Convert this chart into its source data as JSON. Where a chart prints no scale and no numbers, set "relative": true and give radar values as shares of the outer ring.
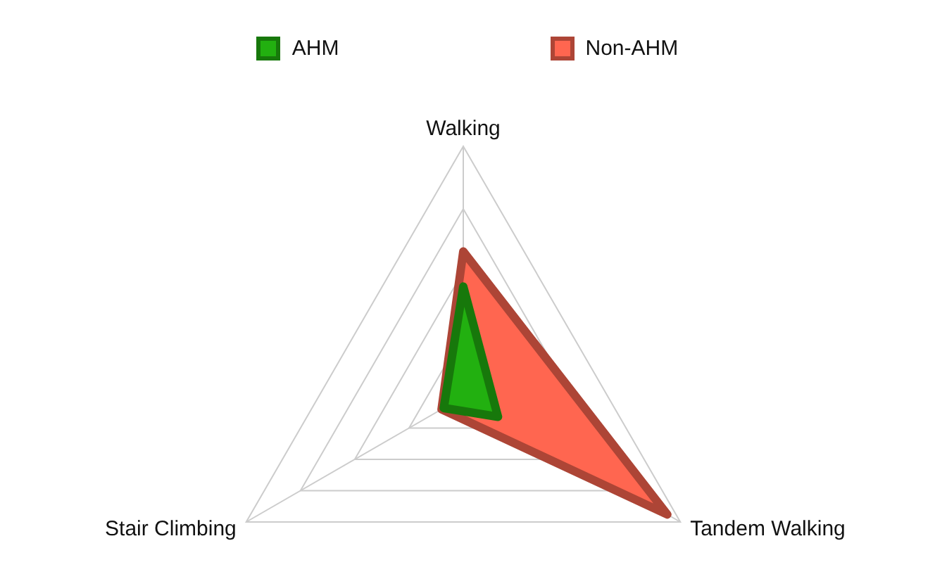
{
  "chart_data": {
    "type": "radar",
    "relative": true,
    "categories": [
      "Walking",
      "Tandem Walking",
      "Stair Climbing"
    ],
    "series": [
      {
        "name": "AHM",
        "color": "#22b010",
        "values": [
          0.44,
          0.16,
          0.09
        ]
      },
      {
        "name": "Non-AHM",
        "color": "#ff6650",
        "values": [
          0.58,
          0.94,
          0.1
        ]
      }
    ],
    "grid": true,
    "legend": "top",
    "line_style": "solid",
    "marker": "none"
  }
}
